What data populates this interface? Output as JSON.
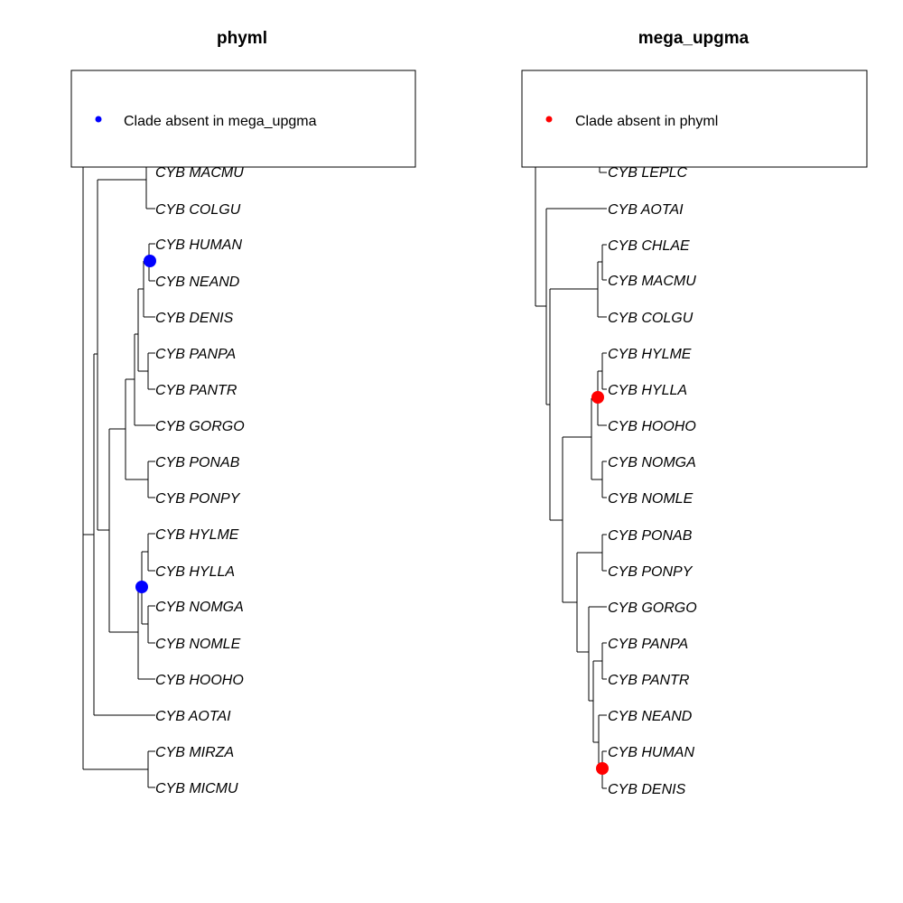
{
  "panels": [
    {
      "title": "phyml",
      "legend": {
        "label": "Clade absent in mega_upgma",
        "color": "#0000ff"
      },
      "taxa": [
        "CYB MACMU",
        "CYB COLGU",
        "CYB HUMAN",
        "CYB NEAND",
        "CYB DENIS",
        "CYB PANPA",
        "CYB PANTR",
        "CYB GORGO",
        "CYB PONAB",
        "CYB PONPY",
        "CYB HYLME",
        "CYB HYLLA",
        "CYB NOMGA",
        "CYB NOMLE",
        "CYB HOOHO",
        "CYB AOTAI",
        "CYB MIRZA",
        "CYB MICMU"
      ],
      "marked_clades": [
        [
          "CYB HUMAN",
          "CYB NEAND"
        ],
        [
          "CYB HYLME",
          "CYB HYLLA",
          "CYB NOMGA",
          "CYB NOMLE"
        ]
      ]
    },
    {
      "title": "mega_upgma",
      "legend": {
        "label": "Clade absent in phyml",
        "color": "#ff0000"
      },
      "taxa": [
        "CYB LEPLC",
        "CYB AOTAI",
        "CYB CHLAE",
        "CYB MACMU",
        "CYB COLGU",
        "CYB HYLME",
        "CYB HYLLA",
        "CYB HOOHO",
        "CYB NOMGA",
        "CYB NOMLE",
        "CYB PONAB",
        "CYB PONPY",
        "CYB GORGO",
        "CYB PANPA",
        "CYB PANTR",
        "CYB NEAND",
        "CYB HUMAN",
        "CYB DENIS"
      ],
      "marked_clades": [
        [
          "CYB HYLME",
          "CYB HYLLA",
          "CYB HOOHO"
        ],
        [
          "CYB HUMAN",
          "CYB DENIS"
        ]
      ]
    }
  ]
}
